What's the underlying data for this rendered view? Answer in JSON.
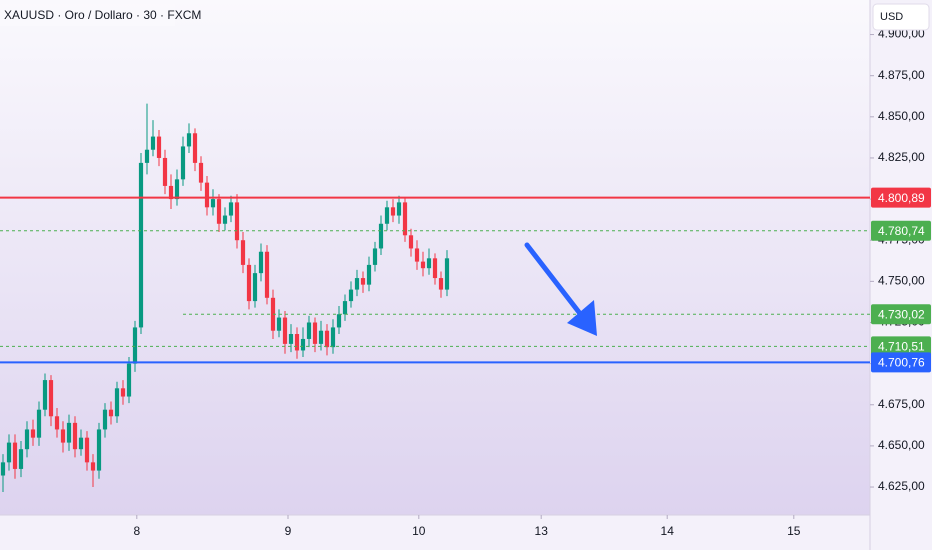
{
  "chart_data": {
    "type": "candlestick",
    "title": "XAUUSD · Oro / Dollaro · 30 · FXCM",
    "currency": "USD",
    "up_color": "#089981",
    "down_color": "#f23645",
    "x": [
      0,
      1,
      2,
      3,
      4,
      5,
      6,
      7,
      8,
      9,
      10,
      11,
      12,
      13,
      14,
      15,
      16,
      17,
      18,
      19,
      20,
      21,
      22,
      23,
      24,
      25,
      26,
      27,
      28,
      29,
      30,
      31,
      32,
      33,
      34,
      35,
      36,
      37,
      38,
      39,
      40,
      41,
      42,
      43,
      44,
      45,
      46,
      47,
      48,
      49,
      50,
      51,
      52,
      53,
      54,
      55,
      56,
      57,
      58,
      59,
      60,
      61,
      62,
      63,
      64,
      65,
      66,
      67,
      68,
      69,
      70,
      71,
      72,
      73,
      74
    ],
    "open": [
      4632,
      4640,
      4652,
      4636,
      4648,
      4660,
      4655,
      4672,
      4690,
      4668,
      4660,
      4652,
      4664,
      4648,
      4655,
      4640,
      4635,
      4660,
      4672,
      4668,
      4685,
      4680,
      4700,
      4722,
      4822,
      4830,
      4838,
      4825,
      4808,
      4800,
      4812,
      4832,
      4840,
      4822,
      4810,
      4795,
      4800,
      4785,
      4790,
      4798,
      4775,
      4760,
      4738,
      4755,
      4768,
      4740,
      4720,
      4728,
      4712,
      4718,
      4708,
      4715,
      4725,
      4712,
      4720,
      4710,
      4722,
      4730,
      4738,
      4745,
      4752,
      4748,
      4760,
      4770,
      4785,
      4795,
      4790,
      4798,
      4778,
      4770,
      4762,
      4758,
      4764,
      4752,
      4745
    ],
    "high": [
      4645,
      4657,
      4657,
      4653,
      4665,
      4666,
      4677,
      4694,
      4693,
      4673,
      4665,
      4669,
      4668,
      4660,
      4659,
      4645,
      4664,
      4676,
      4677,
      4689,
      4690,
      4704,
      4726,
      4828,
      4858,
      4848,
      4842,
      4830,
      4815,
      4818,
      4838,
      4846,
      4843,
      4826,
      4814,
      4806,
      4803,
      4795,
      4802,
      4803,
      4780,
      4764,
      4760,
      4773,
      4772,
      4745,
      4733,
      4732,
      4724,
      4722,
      4722,
      4729,
      4728,
      4726,
      4724,
      4727,
      4735,
      4742,
      4750,
      4757,
      4756,
      4765,
      4774,
      4790,
      4799,
      4800,
      4802,
      4801,
      4782,
      4775,
      4768,
      4770,
      4767,
      4756,
      4769
    ],
    "low": [
      4622,
      4635,
      4630,
      4631,
      4643,
      4650,
      4650,
      4668,
      4662,
      4655,
      4646,
      4647,
      4643,
      4644,
      4635,
      4625,
      4630,
      4655,
      4663,
      4664,
      4675,
      4676,
      4695,
      4718,
      4815,
      4826,
      4820,
      4803,
      4794,
      4796,
      4808,
      4828,
      4817,
      4805,
      4790,
      4790,
      4780,
      4781,
      4786,
      4770,
      4755,
      4733,
      4734,
      4750,
      4736,
      4715,
      4716,
      4706,
      4707,
      4703,
      4704,
      4710,
      4707,
      4708,
      4705,
      4706,
      4718,
      4726,
      4734,
      4741,
      4743,
      4744,
      4756,
      4766,
      4781,
      4786,
      4785,
      4774,
      4765,
      4757,
      4753,
      4754,
      4748,
      4740,
      4741
    ],
    "close": [
      4640,
      4652,
      4636,
      4648,
      4660,
      4655,
      4672,
      4690,
      4668,
      4660,
      4652,
      4664,
      4648,
      4655,
      4640,
      4635,
      4660,
      4672,
      4668,
      4685,
      4680,
      4700,
      4722,
      4822,
      4830,
      4838,
      4825,
      4808,
      4800,
      4812,
      4832,
      4840,
      4822,
      4810,
      4795,
      4800,
      4785,
      4790,
      4798,
      4775,
      4760,
      4738,
      4755,
      4768,
      4740,
      4720,
      4728,
      4712,
      4718,
      4708,
      4715,
      4725,
      4712,
      4720,
      4710,
      4722,
      4730,
      4738,
      4745,
      4752,
      4748,
      4760,
      4770,
      4785,
      4795,
      4790,
      4798,
      4778,
      4770,
      4762,
      4758,
      4764,
      4752,
      4745,
      4764
    ],
    "xlim": [
      -0.5,
      144.5
    ],
    "xticks": [
      {
        "value": 22.3,
        "label": "8"
      },
      {
        "value": 47.5,
        "label": "9"
      },
      {
        "value": 69.3,
        "label": "10"
      },
      {
        "value": 89.7,
        "label": "13"
      },
      {
        "value": 110.7,
        "label": "14"
      },
      {
        "value": 131.8,
        "label": "15"
      }
    ],
    "ylim": [
      4608,
      4921
    ],
    "yticks": [
      {
        "value": 4625,
        "label": "4.625,00"
      },
      {
        "value": 4650,
        "label": "4.650,00"
      },
      {
        "value": 4675,
        "label": "4.675,00"
      },
      {
        "value": 4700,
        "label": "4.700,00"
      },
      {
        "value": 4725,
        "label": "4.725,00"
      },
      {
        "value": 4750,
        "label": "4.750,00"
      },
      {
        "value": 4775,
        "label": "4.775,00"
      },
      {
        "value": 4800,
        "label": "4.800,00"
      },
      {
        "value": 4825,
        "label": "4.825,00"
      },
      {
        "value": 4850,
        "label": "4.850,00"
      },
      {
        "value": 4875,
        "label": "4.875,00"
      },
      {
        "value": 4900,
        "label": "4.900,00"
      }
    ],
    "levels": [
      {
        "value": 4780.74,
        "label": "4.780,74",
        "color": "#4caf50",
        "style": "dashed"
      },
      {
        "value": 4730.02,
        "label": "4.730,02",
        "color": "#4caf50",
        "style": "dashed"
      },
      {
        "value": 4710.51,
        "label": "4.710,51",
        "color": "#4caf50",
        "style": "dashed"
      },
      {
        "value": 4800.89,
        "label": "4.800,89",
        "color": "#f23645",
        "style": "solid"
      },
      {
        "value": 4700.76,
        "label": "4.700,76",
        "color": "#2962ff",
        "style": "solid"
      }
    ]
  }
}
